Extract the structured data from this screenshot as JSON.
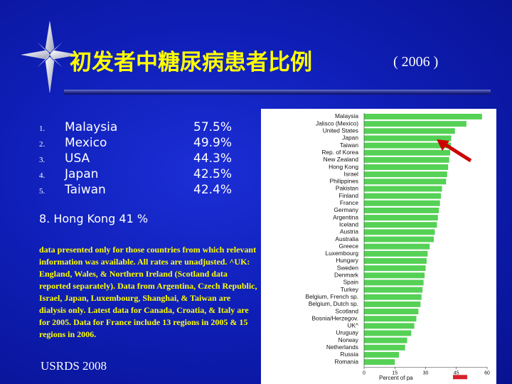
{
  "slide": {
    "title": "初发者中糖尿病患者比例",
    "year": "( 2006 )",
    "ranking": [
      {
        "num": "1.",
        "country": "Malaysia",
        "value": "57.5%"
      },
      {
        "num": "2.",
        "country": "Mexico",
        "value": "49.9%"
      },
      {
        "num": "3.",
        "country": "USA",
        "value": "44.3%"
      },
      {
        "num": "4.",
        "country": "Japan",
        "value": "42.5%"
      },
      {
        "num": "5.",
        "country": "Taiwan",
        "value": "42.4%"
      }
    ],
    "hong_kong": "8. Hong Kong 41 %",
    "note": "data presented only for those countries from which relevant information was available. All rates are unadjusted. ^UK: England, Wales, & Northern Ireland (Scotland data reported separately). Data from Argentina, Czech Republic, Israel, Japan, Luxembourg, Shanghai, & Taiwan are dialysis only. Latest data for Canada, Croatia, & Italy are for 2005. Data for France include 13 regions in 2005 & 15 regions in 2006.",
    "source": "USRDS 2008",
    "colors": {
      "title": "#ffff00",
      "note": "#ffff00",
      "bar": "#55d155",
      "arrow": "#cc0000",
      "highlight": "#d8202a"
    }
  },
  "chart_data": {
    "type": "bar",
    "orientation": "horizontal",
    "categories": [
      "Malaysia",
      "Jalisco (Mexico)",
      "United States",
      "Japan",
      "Taiwan",
      "Rep. of Korea",
      "New Zealand",
      "Hong Kong",
      "Israel",
      "Philippines",
      "Pakistan",
      "Finland",
      "France",
      "Germany",
      "Argentina",
      "Iceland",
      "Austria",
      "Australia",
      "Greece",
      "Luxembourg",
      "Hungary",
      "Sweden",
      "Denmark",
      "Spain",
      "Turkey",
      "Belgium, French sp.",
      "Belgium, Dutch sp.",
      "Scotland",
      "Bosnia/Herzegov.",
      "UK^",
      "Uruguay",
      "Norway",
      "Netherlands",
      "Russia",
      "Romania"
    ],
    "values": [
      57.5,
      49.9,
      44.3,
      42.5,
      42.4,
      42,
      41.5,
      41,
      40.5,
      40,
      38,
      37.5,
      37,
      36.5,
      36,
      35.5,
      34.5,
      34,
      32,
      31,
      30.5,
      30,
      29.5,
      29,
      28.5,
      28,
      27.5,
      26.5,
      25.5,
      24.5,
      23,
      21,
      20,
      17,
      15
    ],
    "xticks": [
      "0",
      "15",
      "30",
      "45",
      "60"
    ],
    "xlim": [
      0,
      60
    ],
    "xlabel": "Percent of pa",
    "highlight_index": 2
  }
}
